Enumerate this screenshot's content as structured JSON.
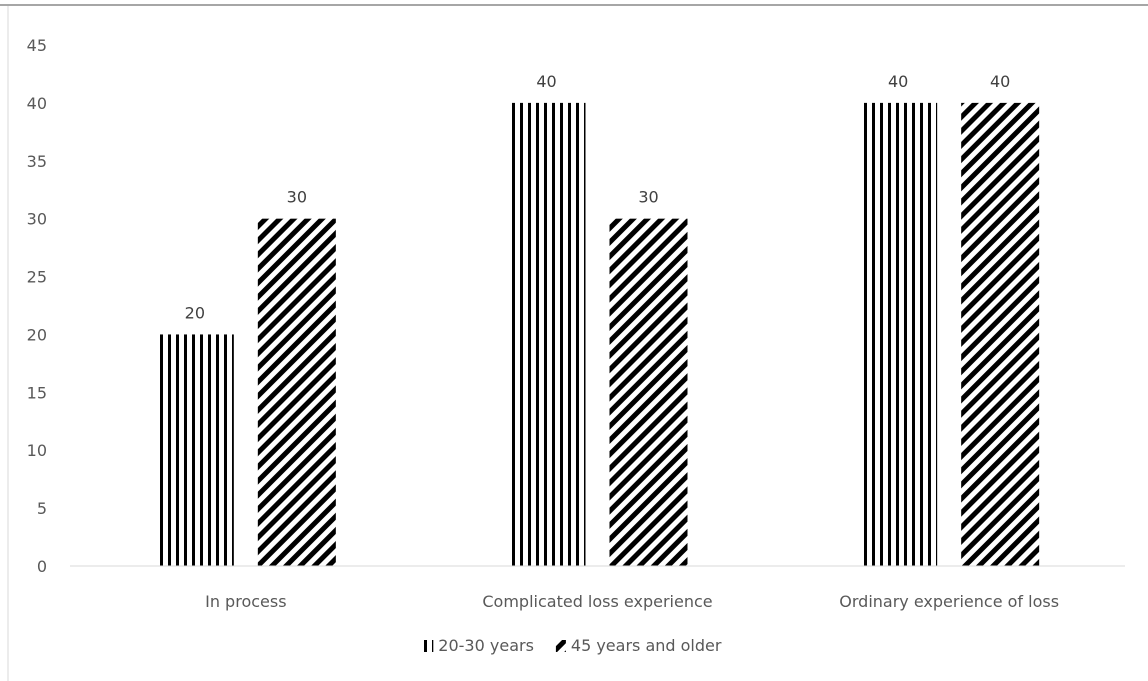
{
  "chart_data": {
    "type": "bar",
    "title": "",
    "xlabel": "",
    "ylabel": "",
    "categories": [
      "In process",
      "Complicated loss experience",
      "Ordinary experience of loss"
    ],
    "series": [
      {
        "name": "20-30 years",
        "values": [
          20,
          40,
          40
        ],
        "pattern": "vertical-stripes",
        "color": "#000000"
      },
      {
        "name": "45 years and older",
        "values": [
          30,
          30,
          40
        ],
        "pattern": "diagonal-stripes",
        "color": "#000000"
      }
    ],
    "ylim": [
      0,
      45
    ],
    "yticks": [
      0,
      5,
      10,
      15,
      20,
      25,
      30,
      35,
      40,
      45
    ],
    "grid": false,
    "data_labels": true,
    "legend_position": "bottom"
  }
}
